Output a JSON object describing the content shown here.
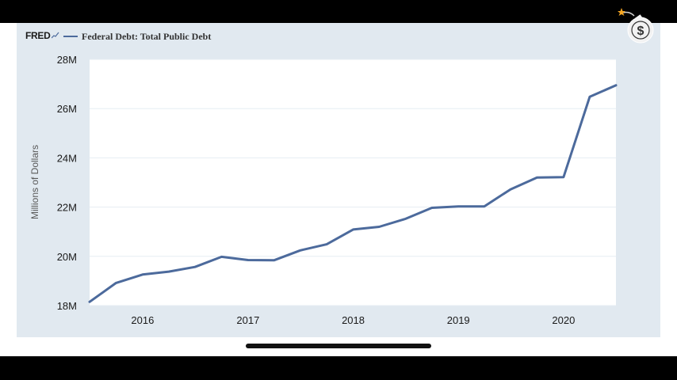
{
  "logo": {
    "text": "FRED"
  },
  "overlay": {
    "icon": "dollar-bomb-icon"
  },
  "colors": {
    "series": "#4c6a9c",
    "panel": "#e1e9f0",
    "plot": "#ffffff",
    "grid": "#e6edf3"
  },
  "chart_data": {
    "type": "line",
    "title": "",
    "xlabel": "",
    "ylabel": "Millions of Dollars",
    "legend_position": "top-left",
    "grid": true,
    "ylim": [
      18,
      28
    ],
    "y_ticks": [
      18,
      20,
      22,
      24,
      26,
      28
    ],
    "y_tick_labels": [
      "18M",
      "20M",
      "22M",
      "24M",
      "26M",
      "28M"
    ],
    "x_ticks": [
      "2016-01-01",
      "2017-01-01",
      "2018-01-01",
      "2019-01-01",
      "2020-01-01"
    ],
    "x_tick_labels": [
      "2016",
      "2017",
      "2018",
      "2019",
      "2020"
    ],
    "xlim": [
      "2015-07-01",
      "2020-07-01"
    ],
    "series": [
      {
        "name": "Federal Debt: Total Public Debt",
        "x": [
          "2015-07-01",
          "2015-10-01",
          "2016-01-01",
          "2016-04-01",
          "2016-07-01",
          "2016-10-01",
          "2017-01-01",
          "2017-04-01",
          "2017-07-01",
          "2017-10-01",
          "2018-01-01",
          "2018-04-01",
          "2018-07-01",
          "2018-10-01",
          "2019-01-01",
          "2019-04-01",
          "2019-07-01",
          "2019-10-01",
          "2020-01-01",
          "2020-04-01",
          "2020-07-01"
        ],
        "values": [
          18.15,
          18.92,
          19.26,
          19.38,
          19.57,
          19.98,
          19.85,
          19.84,
          20.24,
          20.49,
          21.09,
          21.2,
          21.52,
          21.97,
          22.03,
          22.03,
          22.72,
          23.2,
          23.22,
          26.48,
          26.95
        ]
      }
    ]
  }
}
